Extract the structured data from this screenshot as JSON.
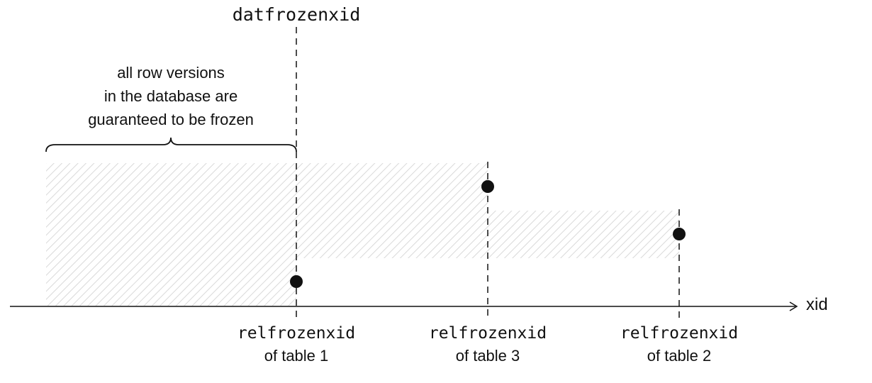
{
  "top_marker": {
    "label": "datfrozenxid"
  },
  "frozen_note": {
    "lines": [
      "all row versions",
      "in the database are",
      "guaranteed to be frozen"
    ]
  },
  "axis": {
    "label": "xid"
  },
  "markers": [
    {
      "id": "table1",
      "line1": "relfrozenxid",
      "line2": "of table 1"
    },
    {
      "id": "table3",
      "line1": "relfrozenxid",
      "line2": "of table 3"
    },
    {
      "id": "table2",
      "line1": "relfrozenxid",
      "line2": "of table 2"
    }
  ],
  "colors": {
    "ink": "#111111",
    "hatch": "#d9d9d9",
    "background": "#ffffff"
  }
}
